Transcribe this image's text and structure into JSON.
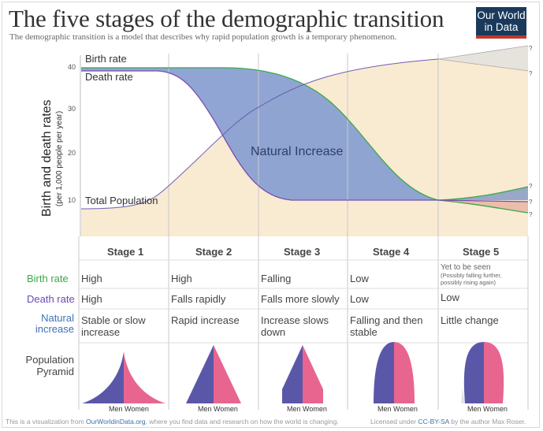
{
  "title": "The five stages of the demographic transition",
  "subtitle": "The demographic transition is a model that describes why rapid population growth is a temporary phenomenon.",
  "logo": {
    "line1": "Our World",
    "line2": "in Data"
  },
  "chart": {
    "y_axis_title": "Birth and death rates",
    "y_axis_subtitle": "(per 1,000 people per year)",
    "y_ticks": [
      "40",
      "30",
      "20",
      "10"
    ],
    "series_labels": {
      "birth": "Birth rate",
      "death": "Death rate",
      "population": "Total Population"
    },
    "annotation": "Natural Increase",
    "question_mark": "?"
  },
  "chart_data": {
    "type": "area",
    "x": [
      "Stage 1",
      "Stage 2",
      "Stage 3",
      "Stage 4",
      "Stage 5"
    ],
    "ylabel": "Birth and death rates (per 1,000 people per year)",
    "ylim": [
      0,
      45
    ],
    "series": [
      {
        "name": "Birth rate",
        "values": [
          40,
          39.5,
          36,
          10.5,
          10
        ]
      },
      {
        "name": "Death rate",
        "values": [
          39,
          21,
          10.5,
          10,
          10
        ]
      },
      {
        "name": "Total Population"
      }
    ]
  },
  "table": {
    "stages": [
      "Stage 1",
      "Stage 2",
      "Stage 3",
      "Stage 4",
      "Stage 5"
    ],
    "rows": [
      {
        "label": "Birth rate",
        "color": "#3aa846",
        "cells": [
          "High",
          "High",
          "Falling",
          "Low",
          ""
        ]
      },
      {
        "label": "Death rate",
        "color": "#6a4bb4",
        "cells": [
          "High",
          "Falls rapidly",
          "Falls more slowly",
          "Low",
          "Low"
        ]
      },
      {
        "label_line1": "Natural",
        "label_line2": "increase",
        "color": "#3f72b5",
        "cells": [
          "Stable or slow increase",
          "Rapid increase",
          "Increase slows down",
          "Falling and then stable",
          "Little change"
        ]
      }
    ],
    "stage5_birth": {
      "main": "Yet to be seen",
      "sub1": "(Possibly falling further,",
      "sub2": "possibly rising again)"
    },
    "pyramid_label_line1": "Population",
    "pyramid_label_line2": "Pyramid",
    "men": "Men",
    "women": "Women"
  },
  "footer": {
    "pre": "This is a visualization from",
    "link": "OurWorldinData.org",
    "post": ", where you find data and research on how the world is changing.",
    "lic_pre": "Licensed under",
    "lic_link": "CC-BY-SA",
    "lic_post": "by the author Max Roser."
  },
  "colors": {
    "men": "#5b57a8",
    "women": "#e8658f",
    "population_fill": "#f9ead2",
    "natural_increase": "#8aa0d2"
  }
}
